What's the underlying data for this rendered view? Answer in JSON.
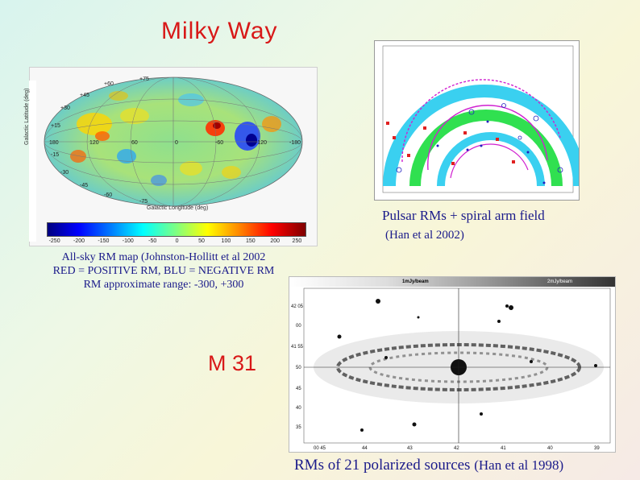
{
  "titles": {
    "milky_way": "Milky Way",
    "m31": "M 31"
  },
  "captions": {
    "pulsar_line1": "Pulsar RMs + spiral arm field",
    "pulsar_line2": "(Han et al 2002)",
    "allsky_line1": "All-sky RM map (Johnston-Hollitt et al 2002",
    "allsky_line2": "RED = POSITIVE RM, BLU = NEGATIVE RM",
    "allsky_line3": "RM approximate range: -300, +300",
    "m31_main": "RMs of 21 polarized sources",
    "m31_ref": "(Han et al 1998)"
  },
  "sky_map": {
    "ylabel": "Galactic Latitude (deg)",
    "xlabel": "Galactic Longitude (deg)",
    "lat_ticks": [
      "+75",
      "+60",
      "+45",
      "+30",
      "+15",
      "-15",
      "-30",
      "-45",
      "-60",
      "-75"
    ],
    "lon_ticks": [
      "180",
      "120",
      "60",
      "0",
      "-60",
      "-120",
      "-180"
    ],
    "colorbar_ticks": [
      "-250",
      "-200",
      "-150",
      "-100",
      "-50",
      "0",
      "50",
      "100",
      "150",
      "200",
      "250"
    ]
  },
  "m31_map": {
    "beam_left": "1mJy/beam",
    "beam_right": "2mJy/beam",
    "dec_ticks": [
      "42 05",
      "00",
      "41 55",
      "50",
      "45",
      "40",
      "35"
    ],
    "ra_ticks": [
      "00 45",
      "44",
      "43",
      "42",
      "41",
      "40",
      "39"
    ]
  }
}
